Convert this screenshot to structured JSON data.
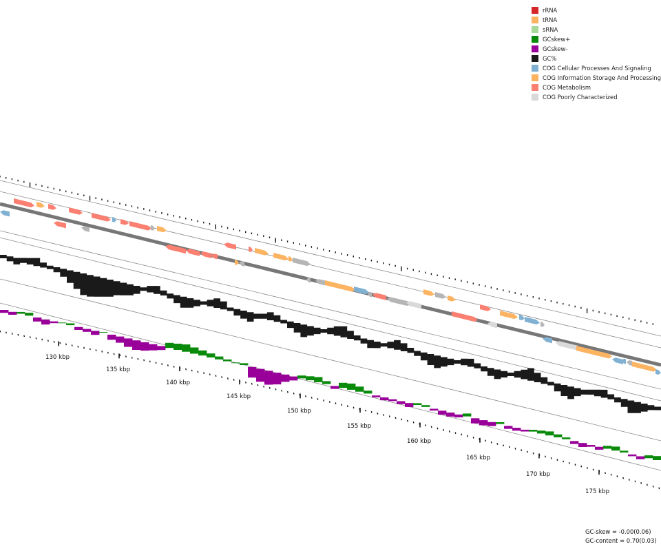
{
  "legend": [
    {
      "label": "rRNA",
      "color": "#d62728"
    },
    {
      "label": "tRNA",
      "color": "#fdb462"
    },
    {
      "label": "sRNA",
      "color": "#a6d99a"
    },
    {
      "label": "GCskew+",
      "color": "#0a8a0a"
    },
    {
      "label": "GCskew-",
      "color": "#990099"
    },
    {
      "label": "GC%",
      "color": "#1a1a1a"
    },
    {
      "label": "COG Cellular Processes And Signaling",
      "color": "#80b1d3"
    },
    {
      "label": "COG Information Storage And Processing",
      "color": "#fdb462"
    },
    {
      "label": "COG Metabolism",
      "color": "#fb8072"
    },
    {
      "label": "COG Poorly Characterized",
      "color": "#d9d9d9"
    }
  ],
  "stats": {
    "gc_skew": "GC-skew = -0.00(0.06)",
    "gc_content": "GC-content = 0.70(0.03)"
  },
  "scale": {
    "labels": [
      "130 kbp",
      "135 kbp",
      "140 kbp",
      "145 kbp",
      "150 kbp",
      "155 kbp",
      "160 kbp",
      "165 kbp",
      "170 kbp",
      "175 kbp"
    ]
  }
}
